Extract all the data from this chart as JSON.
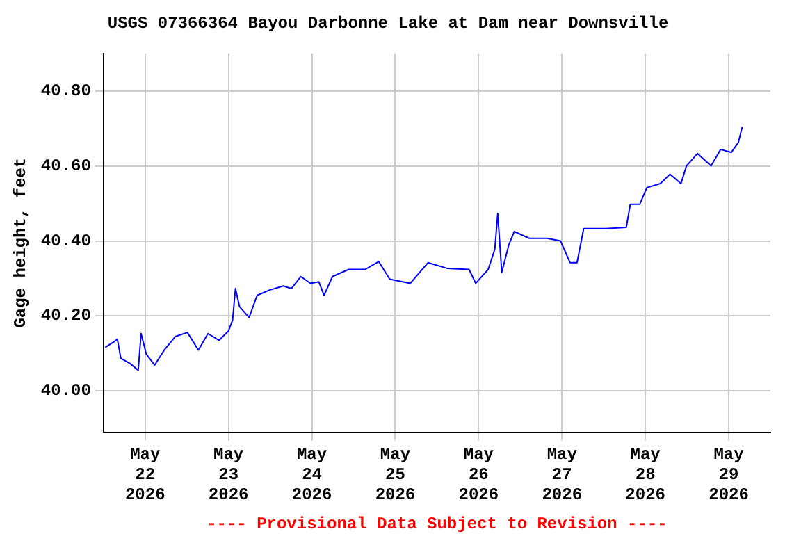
{
  "chart_data": {
    "type": "line",
    "title": "USGS 07366364 Bayou Darbonne Lake at Dam near Downsville",
    "ylabel": "Gage height, feet",
    "annotations": [
      "---- Provisional Data Subject to Revision ----"
    ],
    "xlim": [
      "2026-05-21T12:00",
      "2026-05-29T12:00"
    ],
    "xticks": [
      {
        "value": "2026-05-22",
        "label": "May\n22\n2026"
      },
      {
        "value": "2026-05-23",
        "label": "May\n23\n2026"
      },
      {
        "value": "2026-05-24",
        "label": "May\n24\n2026"
      },
      {
        "value": "2026-05-25",
        "label": "May\n25\n2026"
      },
      {
        "value": "2026-05-26",
        "label": "May\n26\n2026"
      },
      {
        "value": "2026-05-27",
        "label": "May\n27\n2026"
      },
      {
        "value": "2026-05-28",
        "label": "May\n28\n2026"
      },
      {
        "value": "2026-05-29",
        "label": "May\n29\n2026"
      }
    ],
    "ylim": [
      39.89,
      40.9
    ],
    "yticks": [
      {
        "value": 40,
        "label": "40.00"
      },
      {
        "value": 40.2,
        "label": "40.20"
      },
      {
        "value": 40.4,
        "label": "40.40"
      },
      {
        "value": 40.6,
        "label": "40.60"
      },
      {
        "value": 40.8,
        "label": "40.80"
      }
    ],
    "grid": true,
    "legend": false,
    "marker": "none",
    "line_style": "solid",
    "series": [
      {
        "color": "#0000ff",
        "x": [
          "2026-05-21T12:30",
          "2026-05-21T15:00",
          "2026-05-21T16:00",
          "2026-05-21T17:00",
          "2026-05-21T19:40",
          "2026-05-21T22:00",
          "2026-05-21T22:50",
          "2026-05-22T00:20",
          "2026-05-22T02:45",
          "2026-05-22T05:30",
          "2026-05-22T08:40",
          "2026-05-22T12:10",
          "2026-05-22T15:20",
          "2026-05-22T18:05",
          "2026-05-22T21:15",
          "2026-05-23T00:00",
          "2026-05-23T01:10",
          "2026-05-23T02:00",
          "2026-05-23T03:10",
          "2026-05-23T05:55",
          "2026-05-23T08:15",
          "2026-05-23T11:50",
          "2026-05-23T15:45",
          "2026-05-23T18:05",
          "2026-05-23T20:50",
          "2026-05-23T23:35",
          "2026-05-24T02:00",
          "2026-05-24T03:30",
          "2026-05-24T05:55",
          "2026-05-24T10:35",
          "2026-05-24T12:35",
          "2026-05-24T15:20",
          "2026-05-24T19:15",
          "2026-05-24T22:25",
          "2026-05-25T04:20",
          "2026-05-25T09:25",
          "2026-05-25T14:55",
          "2026-05-25T21:15",
          "2026-05-25T23:10",
          "2026-05-26T02:45",
          "2026-05-26T04:40",
          "2026-05-26T05:30",
          "2026-05-26T06:40",
          "2026-05-26T08:40",
          "2026-05-26T10:15",
          "2026-05-26T14:35",
          "2026-05-26T19:40",
          "2026-05-26T23:35",
          "2026-05-27T02:20",
          "2026-05-27T04:20",
          "2026-05-27T06:15",
          "2026-05-27T12:35",
          "2026-05-27T18:30",
          "2026-05-27T19:40",
          "2026-05-27T22:25",
          "2026-05-28T00:25",
          "2026-05-28T04:20",
          "2026-05-28T07:05",
          "2026-05-28T10:15",
          "2026-05-28T11:50",
          "2026-05-28T15:00",
          "2026-05-28T18:55",
          "2026-05-28T21:40",
          "2026-05-29T00:45",
          "2026-05-29T02:45",
          "2026-05-29T03:55"
        ],
        "values": [
          40.116,
          40.131,
          40.138,
          40.087,
          40.073,
          40.055,
          40.153,
          40.098,
          40.069,
          40.109,
          40.145,
          40.156,
          40.109,
          40.153,
          40.135,
          40.16,
          40.189,
          40.273,
          40.225,
          40.196,
          40.255,
          40.269,
          40.28,
          40.273,
          40.305,
          40.287,
          40.291,
          40.255,
          40.305,
          40.324,
          40.324,
          40.324,
          40.345,
          40.298,
          40.287,
          40.342,
          40.327,
          40.324,
          40.287,
          40.324,
          40.378,
          40.473,
          40.316,
          40.389,
          40.425,
          40.407,
          40.407,
          40.4,
          40.342,
          40.342,
          40.433,
          40.433,
          40.436,
          40.498,
          40.498,
          40.542,
          40.553,
          40.578,
          40.553,
          40.6,
          40.633,
          40.6,
          40.644,
          40.636,
          40.662,
          40.705
        ]
      }
    ]
  }
}
